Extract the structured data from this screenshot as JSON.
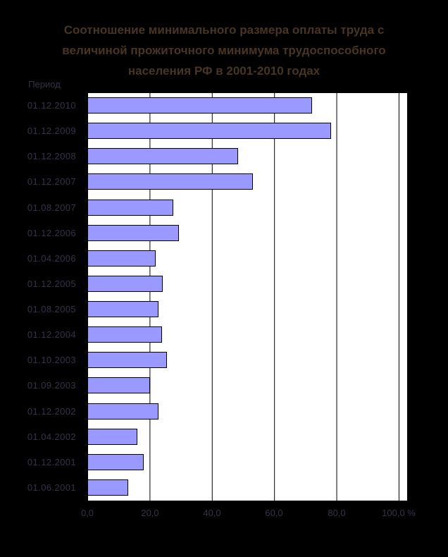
{
  "page": {
    "background": "#000000"
  },
  "title": {
    "lines": [
      "Соотношение минимального размера оплаты труда с",
      "величиной прожиточного минимума трудоспособного",
      "населения РФ в 2001-2010 годах"
    ]
  },
  "category_axis": {
    "header": "Период"
  },
  "x_axis": {
    "tick_labels": [
      "0,0",
      "20,0",
      "40,0",
      "60,0",
      "80,0",
      "100,0 %"
    ],
    "unit": "%"
  },
  "chart_data": {
    "type": "bar",
    "orientation": "horizontal",
    "title": "Соотношение минимального размера оплаты труда с величиной прожиточного минимума трудоспособного населения РФ в 2001-2010 годах",
    "category_axis_label": "Период",
    "categories": [
      "01.12.2010",
      "01.12.2009",
      "01.12.2008",
      "01.12.2007",
      "01.08.2007",
      "01.12.2006",
      "01.04.2006",
      "01.12.2005",
      "01.08.2005",
      "01.12.2004",
      "01.10.2003",
      "01.09.2003",
      "01.12.2002",
      "01.04.2002",
      "01.12.2001",
      "01.06.2001"
    ],
    "values": [
      72.2,
      78.3,
      48.5,
      53.2,
      27.5,
      29.4,
      22.0,
      24.2,
      22.8,
      24.0,
      25.6,
      20.2,
      22.8,
      16.1,
      18.0,
      13.2
    ],
    "xlabel": "%",
    "xlim": [
      0,
      100
    ],
    "grid": true,
    "gridline_interval": 20,
    "legend": "none",
    "bar_color": "#9999ff",
    "bar_border_color": "#000000"
  },
  "colors": {
    "page_bg": "#000000",
    "plot_bg": "#ffffff",
    "bar_fill": "#9999ff",
    "bar_border": "#000000",
    "gridline": "#000000",
    "title_text": "#483522",
    "label_text": "#34334a"
  }
}
